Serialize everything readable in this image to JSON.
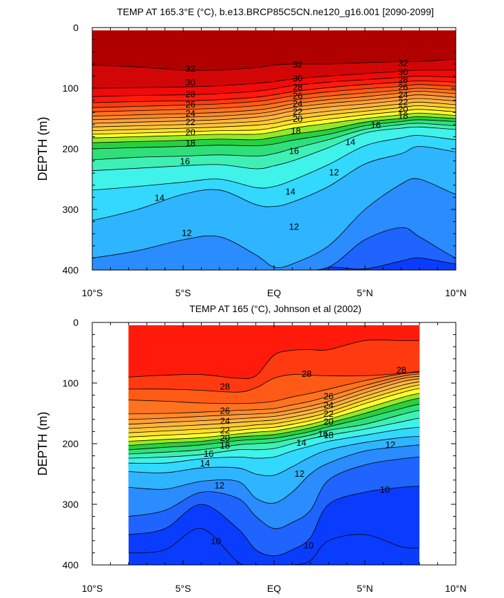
{
  "colors": {
    "background": "#ffffff",
    "palette": {
      "10": "#0a3cff",
      "11": "#1f64ff",
      "12": "#2a8cff",
      "13": "#2fb4ff",
      "14": "#33d8ff",
      "15": "#3ff2ea",
      "16": "#3ff0b4",
      "17": "#2fe07a",
      "18": "#28d040",
      "19": "#90ea2a",
      "20": "#ffff2a",
      "21": "#ffe02a",
      "22": "#ffc833",
      "23": "#ffb540",
      "24": "#ff9e3a",
      "25": "#ff8a2a",
      "26": "#ff7320",
      "27": "#ff5a16",
      "28": "#ff3a10",
      "29": "#ff1a0c",
      "30": "#f00a0a",
      "31": "#d20606",
      "32": "#b00000"
    }
  },
  "chart_data": [
    {
      "type": "heatmap",
      "subtype": "filled-contour",
      "title": "TEMP AT 165.3°E (°C), b.e13.BRCP85C5CN.ne120_g16.001 [2090-2099]",
      "xlabel": "",
      "ylabel": "DEPTH (m)",
      "xlim": [
        -10,
        10
      ],
      "ylim": [
        400,
        0
      ],
      "data_xlim": [
        -10,
        10
      ],
      "data_top_depth": 5,
      "xticks": [
        -10,
        -5,
        0,
        5,
        10
      ],
      "xtick_labels": [
        "10°S",
        "5°S",
        "EQ",
        "5°N",
        "10°N"
      ],
      "yticks": [
        0,
        100,
        200,
        300,
        400
      ],
      "ytick_labels": [
        "0",
        "100",
        "200",
        "300",
        "400"
      ],
      "base_level": 10,
      "x_nodes": [
        -10,
        -7.5,
        -5,
        -3,
        -1,
        0,
        1,
        3,
        5,
        7,
        8,
        10
      ],
      "isotherms": [
        {
          "level": 11,
          "depths": [
            null,
            null,
            null,
            null,
            null,
            null,
            400,
            395,
            398,
            385,
            380,
            390
          ]
        },
        {
          "level": 12,
          "depths": [
            400,
            400,
            400,
            400,
            400,
            400,
            400,
            395,
            350,
            330,
            345,
            380
          ]
        },
        {
          "level": 13,
          "depths": [
            380,
            368,
            350,
            345,
            375,
            395,
            390,
            360,
            300,
            258,
            250,
            275
          ]
        },
        {
          "level": 14,
          "depths": [
            318,
            300,
            275,
            268,
            292,
            295,
            288,
            262,
            225,
            208,
            196,
            205
          ]
        },
        {
          "level": 15,
          "depths": [
            268,
            262,
            255,
            250,
            264,
            262,
            252,
            226,
            195,
            182,
            178,
            185
          ]
        },
        {
          "level": 16,
          "depths": [
            236,
            232,
            228,
            226,
            233,
            228,
            220,
            198,
            174,
            166,
            164,
            168
          ]
        },
        {
          "level": 17,
          "depths": [
            218,
            214,
            212,
            210,
            212,
            208,
            200,
            185,
            168,
            160,
            158,
            162
          ]
        },
        {
          "level": 18,
          "depths": [
            200,
            198,
            196,
            194,
            195,
            192,
            186,
            176,
            162,
            155,
            152,
            155
          ]
        },
        {
          "level": 19,
          "depths": [
            190,
            188,
            186,
            184,
            185,
            181,
            176,
            168,
            156,
            150,
            147,
            150
          ]
        },
        {
          "level": 20,
          "depths": [
            182,
            180,
            178,
            176,
            176,
            172,
            166,
            158,
            150,
            144,
            141,
            145
          ]
        },
        {
          "level": 21,
          "depths": [
            176,
            174,
            172,
            170,
            169,
            165,
            159,
            151,
            144,
            138,
            135,
            139
          ]
        },
        {
          "level": 22,
          "depths": [
            170,
            168,
            166,
            164,
            161,
            158,
            152,
            144,
            138,
            132,
            129,
            133
          ]
        },
        {
          "level": 23,
          "depths": [
            164,
            162,
            160,
            158,
            155,
            151,
            145,
            138,
            132,
            126,
            123,
            127
          ]
        },
        {
          "level": 24,
          "depths": [
            158,
            156,
            154,
            152,
            148,
            144,
            138,
            131,
            126,
            120,
            117,
            121
          ]
        },
        {
          "level": 25,
          "depths": [
            152,
            150,
            148,
            146,
            142,
            138,
            132,
            125,
            120,
            114,
            111,
            115
          ]
        },
        {
          "level": 26,
          "depths": [
            146,
            144,
            142,
            140,
            136,
            132,
            126,
            119,
            114,
            108,
            105,
            109
          ]
        },
        {
          "level": 27,
          "depths": [
            139,
            137,
            135,
            133,
            129,
            125,
            120,
            113,
            108,
            103,
            100,
            103
          ]
        },
        {
          "level": 28,
          "depths": [
            132,
            130,
            128,
            126,
            122,
            118,
            113,
            106,
            101,
            97,
            94,
            97
          ]
        },
        {
          "level": 29,
          "depths": [
            124,
            122,
            121,
            119,
            115,
            111,
            106,
            99,
            94,
            90,
            88,
            90
          ]
        },
        {
          "level": 30,
          "depths": [
            114,
            112,
            111,
            109,
            105,
            101,
            96,
            90,
            86,
            82,
            80,
            82
          ]
        },
        {
          "level": 31,
          "depths": [
            100,
            99,
            98,
            96,
            92,
            89,
            85,
            80,
            76,
            72,
            70,
            70
          ]
        },
        {
          "level": 32,
          "depths": [
            62,
            65,
            70,
            70,
            66,
            62,
            60,
            60,
            58,
            56,
            56,
            52
          ]
        }
      ],
      "contour_labels": [
        {
          "text": "32",
          "x": -4.6,
          "depth": 67
        },
        {
          "text": "30",
          "x": -4.6,
          "depth": 90
        },
        {
          "text": "28",
          "x": -4.6,
          "depth": 109
        },
        {
          "text": "26",
          "x": -4.6,
          "depth": 126
        },
        {
          "text": "24",
          "x": -4.6,
          "depth": 141
        },
        {
          "text": "22",
          "x": -4.6,
          "depth": 155
        },
        {
          "text": "20",
          "x": -4.6,
          "depth": 172
        },
        {
          "text": "18",
          "x": -4.6,
          "depth": 190
        },
        {
          "text": "16",
          "x": -4.9,
          "depth": 220
        },
        {
          "text": "14",
          "x": -6.3,
          "depth": 280
        },
        {
          "text": "12",
          "x": -4.8,
          "depth": 338
        },
        {
          "text": "32",
          "x": 1.3,
          "depth": 60
        },
        {
          "text": "30",
          "x": 1.3,
          "depth": 83
        },
        {
          "text": "28",
          "x": 1.3,
          "depth": 98
        },
        {
          "text": "26",
          "x": 1.3,
          "depth": 112
        },
        {
          "text": "24",
          "x": 1.3,
          "depth": 125
        },
        {
          "text": "22",
          "x": 1.3,
          "depth": 138
        },
        {
          "text": "20",
          "x": 1.3,
          "depth": 150
        },
        {
          "text": "18",
          "x": 1.2,
          "depth": 170
        },
        {
          "text": "16",
          "x": 1.1,
          "depth": 203
        },
        {
          "text": "14",
          "x": 0.9,
          "depth": 270
        },
        {
          "text": "12",
          "x": 1.1,
          "depth": 328
        },
        {
          "text": "32",
          "x": 7.1,
          "depth": 58
        },
        {
          "text": "30",
          "x": 7.1,
          "depth": 73
        },
        {
          "text": "28",
          "x": 7.1,
          "depth": 86
        },
        {
          "text": "26",
          "x": 7.1,
          "depth": 98
        },
        {
          "text": "24",
          "x": 7.1,
          "depth": 110
        },
        {
          "text": "22",
          "x": 7.1,
          "depth": 122
        },
        {
          "text": "20",
          "x": 7.1,
          "depth": 134
        },
        {
          "text": "18",
          "x": 7.1,
          "depth": 145
        },
        {
          "text": "16",
          "x": 5.6,
          "depth": 160
        },
        {
          "text": "14",
          "x": 4.2,
          "depth": 188
        },
        {
          "text": "12",
          "x": 3.3,
          "depth": 238
        }
      ]
    },
    {
      "type": "heatmap",
      "subtype": "filled-contour",
      "title": "TEMP AT 165 (°C), Johnson et al (2002)",
      "xlabel": "",
      "ylabel": "DEPTH (m)",
      "xlim": [
        -10,
        10
      ],
      "ylim": [
        400,
        0
      ],
      "data_xlim": [
        -8,
        8
      ],
      "data_top_depth": 5,
      "xticks": [
        -10,
        -5,
        0,
        5,
        10
      ],
      "xtick_labels": [
        "10°S",
        "5°S",
        "EQ",
        "5°N",
        "10°N"
      ],
      "yticks": [
        0,
        100,
        200,
        300,
        400
      ],
      "ytick_labels": [
        "0",
        "100",
        "200",
        "300",
        "400"
      ],
      "base_level": 9,
      "x_nodes": [
        -8,
        -6,
        -4,
        -2,
        -1,
        0,
        1,
        2,
        3,
        5,
        7,
        8
      ],
      "isotherms": [
        {
          "level": 10,
          "depths": [
            380,
            375,
            340,
            395,
            400,
            400,
            400,
            393,
            360,
            350,
            370,
            372
          ]
        },
        {
          "level": 11,
          "depths": [
            350,
            340,
            300,
            340,
            375,
            385,
            375,
            355,
            300,
            280,
            272,
            270
          ]
        },
        {
          "level": 12,
          "depths": [
            320,
            310,
            280,
            290,
            320,
            340,
            330,
            310,
            260,
            235,
            225,
            222
          ]
        },
        {
          "level": 13,
          "depths": [
            272,
            275,
            262,
            262,
            290,
            298,
            280,
            250,
            232,
            212,
            205,
            202
          ]
        },
        {
          "level": 14,
          "depths": [
            246,
            248,
            240,
            240,
            250,
            252,
            238,
            222,
            210,
            198,
            190,
            188
          ]
        },
        {
          "level": 15,
          "depths": [
            232,
            232,
            225,
            222,
            224,
            222,
            212,
            204,
            196,
            186,
            176,
            173
          ]
        },
        {
          "level": 16,
          "depths": [
            224,
            222,
            218,
            210,
            210,
            208,
            200,
            192,
            186,
            176,
            164,
            158
          ]
        },
        {
          "level": 17,
          "depths": [
            217,
            214,
            210,
            202,
            200,
            198,
            192,
            186,
            178,
            168,
            152,
            145
          ]
        },
        {
          "level": 18,
          "depths": [
            210,
            206,
            202,
            195,
            193,
            191,
            186,
            180,
            172,
            158,
            142,
            135
          ]
        },
        {
          "level": 19,
          "depths": [
            203,
            199,
            196,
            189,
            187,
            185,
            180,
            174,
            166,
            150,
            132,
            125
          ]
        },
        {
          "level": 20,
          "depths": [
            196,
            193,
            190,
            184,
            181,
            179,
            174,
            168,
            160,
            142,
            124,
            117
          ]
        },
        {
          "level": 21,
          "depths": [
            189,
            186,
            183,
            178,
            175,
            173,
            168,
            162,
            154,
            134,
            116,
            109
          ]
        },
        {
          "level": 22,
          "depths": [
            182,
            179,
            176,
            172,
            169,
            167,
            162,
            156,
            148,
            128,
            110,
            103
          ]
        },
        {
          "level": 23,
          "depths": [
            175,
            172,
            169,
            165,
            163,
            161,
            156,
            150,
            142,
            122,
            104,
            98
          ]
        },
        {
          "level": 24,
          "depths": [
            168,
            165,
            162,
            159,
            157,
            155,
            150,
            144,
            136,
            116,
            98,
            93
          ]
        },
        {
          "level": 25,
          "depths": [
            160,
            158,
            155,
            152,
            151,
            149,
            144,
            138,
            130,
            110,
            93,
            89
          ]
        },
        {
          "level": 26,
          "depths": [
            151,
            150,
            148,
            145,
            144,
            142,
            136,
            130,
            122,
            104,
            89,
            85
          ]
        },
        {
          "level": 27,
          "depths": [
            128,
            130,
            133,
            134,
            133,
            130,
            123,
            117,
            110,
            96,
            85,
            82
          ]
        },
        {
          "level": 28,
          "depths": [
            110,
            110,
            112,
            115,
            108,
            92,
            86,
            87,
            88,
            88,
            84,
            81
          ]
        },
        {
          "level": 29,
          "depths": [
            90,
            87,
            86,
            92,
            88,
            54,
            46,
            45,
            45,
            30,
            30,
            30
          ]
        }
      ],
      "contour_labels": [
        {
          "text": "28",
          "x": -2.7,
          "depth": 105
        },
        {
          "text": "26",
          "x": -2.7,
          "depth": 145
        },
        {
          "text": "24",
          "x": -2.7,
          "depth": 162
        },
        {
          "text": "22",
          "x": -2.7,
          "depth": 177
        },
        {
          "text": "20",
          "x": -2.7,
          "depth": 190
        },
        {
          "text": "18",
          "x": -2.7,
          "depth": 202
        },
        {
          "text": "16",
          "x": -3.6,
          "depth": 216
        },
        {
          "text": "14",
          "x": -3.8,
          "depth": 232
        },
        {
          "text": "12",
          "x": -3.0,
          "depth": 268
        },
        {
          "text": "10",
          "x": -3.2,
          "depth": 360
        },
        {
          "text": "28",
          "x": 1.8,
          "depth": 84
        },
        {
          "text": "26",
          "x": 3.0,
          "depth": 121
        },
        {
          "text": "24",
          "x": 3.0,
          "depth": 136
        },
        {
          "text": "22",
          "x": 3.0,
          "depth": 150
        },
        {
          "text": "20",
          "x": 3.0,
          "depth": 163
        },
        {
          "text": "18",
          "x": 3.0,
          "depth": 185
        },
        {
          "text": "16",
          "x": 2.7,
          "depth": 183
        },
        {
          "text": "14",
          "x": 1.5,
          "depth": 198
        },
        {
          "text": "12",
          "x": 1.4,
          "depth": 249
        },
        {
          "text": "10",
          "x": 1.9,
          "depth": 367
        },
        {
          "text": "28",
          "x": 7.0,
          "depth": 78
        },
        {
          "text": "12",
          "x": 6.4,
          "depth": 201
        },
        {
          "text": "10",
          "x": 6.1,
          "depth": 275
        }
      ]
    }
  ]
}
